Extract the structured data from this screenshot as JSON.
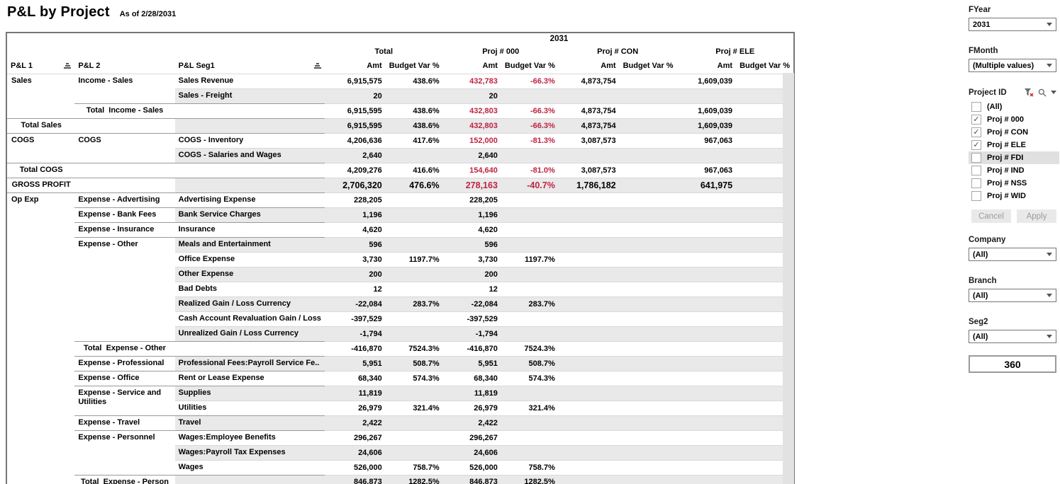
{
  "header": {
    "title": "P&L by Project",
    "subtitle": "As of 2/28/2031"
  },
  "pivot": {
    "year_header": "2031",
    "row_headers": [
      {
        "label": "P&L 1",
        "sort": true
      },
      {
        "label": "P&L 2",
        "sort": false
      },
      {
        "label": "P&L Seg1",
        "sort": true
      }
    ],
    "groups": [
      "Total",
      "Proj # 000",
      "Proj # CON",
      "Proj # ELE"
    ],
    "measure_headers": [
      "Amt",
      "Budget Var %"
    ],
    "rows": [
      {
        "pl1": {
          "label": "Sales",
          "span": 3
        },
        "pl2": {
          "label": "Income - Sales",
          "span": 2
        },
        "seg1": "Sales Revenue",
        "v": [
          "6,915,575",
          "438.6%",
          "432,783",
          "-66.3%",
          "4,873,754",
          "",
          "1,609,039",
          ""
        ],
        "red": [
          2,
          3
        ]
      },
      {
        "seg1": "Sales - Freight",
        "v": [
          "20",
          "",
          "20",
          "",
          "",
          "",
          "",
          ""
        ]
      },
      {
        "pl2": {
          "label": "Total  Income - Sales",
          "span": 1,
          "total": true
        },
        "seg1": "",
        "v": [
          "6,915,595",
          "438.6%",
          "432,803",
          "-66.3%",
          "4,873,754",
          "",
          "1,609,039",
          ""
        ],
        "red": [
          2,
          3
        ],
        "sep": true
      },
      {
        "pl1": {
          "label": "Total Sales",
          "span": 1,
          "total": true
        },
        "pl2": {
          "label": "",
          "span": 1
        },
        "seg1": "",
        "v": [
          "6,915,595",
          "438.6%",
          "432,803",
          "-66.3%",
          "4,873,754",
          "",
          "1,609,039",
          ""
        ],
        "red": [
          2,
          3
        ],
        "sep": true
      },
      {
        "pl1": {
          "label": "COGS",
          "span": 2
        },
        "pl2": {
          "label": "COGS",
          "span": 2
        },
        "seg1": "COGS - Inventory",
        "v": [
          "4,206,636",
          "417.6%",
          "152,000",
          "-81.3%",
          "3,087,573",
          "",
          "967,063",
          ""
        ],
        "red": [
          2,
          3
        ],
        "sep": true
      },
      {
        "seg1": "COGS - Salaries and Wages",
        "v": [
          "2,640",
          "",
          "2,640",
          "",
          "",
          "",
          "",
          ""
        ]
      },
      {
        "pl1": {
          "label": "Total COGS",
          "span": 1,
          "total": true
        },
        "pl2": {
          "label": "",
          "span": 1
        },
        "seg1": "",
        "v": [
          "4,209,276",
          "416.6%",
          "154,640",
          "-81.0%",
          "3,087,573",
          "",
          "967,063",
          ""
        ],
        "red": [
          2,
          3
        ],
        "sep": true
      },
      {
        "pl1": {
          "label": "GROSS PROFIT",
          "span": 1,
          "total": true
        },
        "pl2": {
          "label": "",
          "span": 1
        },
        "seg1": "",
        "v": [
          "2,706,320",
          "476.6%",
          "278,163",
          "-40.7%",
          "1,786,182",
          "",
          "641,975",
          ""
        ],
        "red": [
          2,
          3
        ],
        "sep": true,
        "big": true
      },
      {
        "pl1": {
          "label": "Op Exp",
          "span": 20
        },
        "pl2": {
          "label": "Expense - Advertising",
          "span": 1
        },
        "seg1": "Advertising Expense",
        "v": [
          "228,205",
          "",
          "228,205",
          "",
          "",
          "",
          "",
          ""
        ],
        "sep": true
      },
      {
        "pl2": {
          "label": "Expense - Bank Fees",
          "span": 1
        },
        "seg1": "Bank Service Charges",
        "v": [
          "1,196",
          "",
          "1,196",
          "",
          "",
          "",
          "",
          ""
        ],
        "sep": true
      },
      {
        "pl2": {
          "label": "Expense - Insurance",
          "span": 1
        },
        "seg1": "Insurance",
        "v": [
          "4,620",
          "",
          "4,620",
          "",
          "",
          "",
          "",
          ""
        ],
        "sep": true
      },
      {
        "pl2": {
          "label": "Expense - Other",
          "span": 7
        },
        "seg1": "Meals and Entertainment",
        "v": [
          "596",
          "",
          "596",
          "",
          "",
          "",
          "",
          ""
        ],
        "sep": true
      },
      {
        "seg1": "Office Expense",
        "v": [
          "3,730",
          "1197.7%",
          "3,730",
          "1197.7%",
          "",
          "",
          "",
          ""
        ]
      },
      {
        "seg1": "Other Expense",
        "v": [
          "200",
          "",
          "200",
          "",
          "",
          "",
          "",
          ""
        ]
      },
      {
        "seg1": "Bad Debts",
        "v": [
          "12",
          "",
          "12",
          "",
          "",
          "",
          "",
          ""
        ]
      },
      {
        "seg1": "Realized Gain / Loss Currency",
        "v": [
          "-22,084",
          "283.7%",
          "-22,084",
          "283.7%",
          "",
          "",
          "",
          ""
        ]
      },
      {
        "seg1": "Cash Account Revaluation Gain / Loss",
        "v": [
          "-397,529",
          "",
          "-397,529",
          "",
          "",
          "",
          "",
          ""
        ]
      },
      {
        "seg1": "Unrealized Gain / Loss Currency",
        "v": [
          "-1,794",
          "",
          "-1,794",
          "",
          "",
          "",
          "",
          ""
        ]
      },
      {
        "pl2": {
          "label": "Total  Expense - Other",
          "span": 1,
          "total": true
        },
        "seg1": "",
        "v": [
          "-416,870",
          "7524.3%",
          "-416,870",
          "7524.3%",
          "",
          "",
          "",
          ""
        ],
        "sep": true
      },
      {
        "pl2": {
          "label": "Expense - Professional",
          "span": 1
        },
        "seg1": "Professional Fees:Payroll Service Fe..",
        "v": [
          "5,951",
          "508.7%",
          "5,951",
          "508.7%",
          "",
          "",
          "",
          ""
        ],
        "sep": true
      },
      {
        "pl2": {
          "label": "Expense - Office",
          "span": 1
        },
        "seg1": "Rent or Lease Expense",
        "v": [
          "68,340",
          "574.3%",
          "68,340",
          "574.3%",
          "",
          "",
          "",
          ""
        ],
        "sep": true
      },
      {
        "pl2": {
          "label": "Expense - Service and Utilities",
          "span": 2
        },
        "seg1": "Supplies",
        "v": [
          "11,819",
          "",
          "11,819",
          "",
          "",
          "",
          "",
          ""
        ],
        "sep": true
      },
      {
        "seg1": "Utilities",
        "v": [
          "26,979",
          "321.4%",
          "26,979",
          "321.4%",
          "",
          "",
          "",
          ""
        ]
      },
      {
        "pl2": {
          "label": "Expense - Travel",
          "span": 1
        },
        "seg1": "Travel",
        "v": [
          "2,422",
          "",
          "2,422",
          "",
          "",
          "",
          "",
          ""
        ],
        "sep": true
      },
      {
        "pl2": {
          "label": "Expense - Personnel",
          "span": 3
        },
        "seg1": "Wages:Employee Benefits",
        "v": [
          "296,267",
          "",
          "296,267",
          "",
          "",
          "",
          "",
          ""
        ],
        "sep": true
      },
      {
        "seg1": "Wages:Payroll Tax Expenses",
        "v": [
          "24,606",
          "",
          "24,606",
          "",
          "",
          "",
          "",
          ""
        ]
      },
      {
        "seg1": "Wages",
        "v": [
          "526,000",
          "758.7%",
          "526,000",
          "758.7%",
          "",
          "",
          "",
          ""
        ]
      },
      {
        "pl2": {
          "label": "Total  Expense - Person",
          "span": 1,
          "total": true
        },
        "seg1": "",
        "v": [
          "846,873",
          "1282.5%",
          "846,873",
          "1282.5%",
          "",
          "",
          "",
          ""
        ],
        "sep": true
      }
    ],
    "colors": {
      "negative": "#bf2341",
      "band": "#e9e9e9"
    }
  },
  "sidebar": {
    "fyear": {
      "label": "FYear",
      "value": "2031"
    },
    "fmonth": {
      "label": "FMonth",
      "value": "(Multiple values)"
    },
    "project": {
      "label": "Project ID",
      "icons": [
        "filter-clear-icon",
        "search-icon",
        "caret-down-icon"
      ],
      "items": [
        {
          "label": "(All)",
          "checked": false
        },
        {
          "label": "Proj # 000",
          "checked": true
        },
        {
          "label": "Proj # CON",
          "checked": true
        },
        {
          "label": "Proj # ELE",
          "checked": true
        },
        {
          "label": "Proj # FDI",
          "checked": false,
          "highlighted": true
        },
        {
          "label": "Proj # IND",
          "checked": false
        },
        {
          "label": "Proj # NSS",
          "checked": false
        },
        {
          "label": "Proj # WID",
          "checked": false
        }
      ],
      "cancel_label": "Cancel",
      "apply_label": "Apply"
    },
    "company": {
      "label": "Company",
      "value": "(All)"
    },
    "branch": {
      "label": "Branch",
      "value": "(All)"
    },
    "seg2": {
      "label": "Seg2",
      "value": "(All)"
    },
    "counter": "360"
  }
}
